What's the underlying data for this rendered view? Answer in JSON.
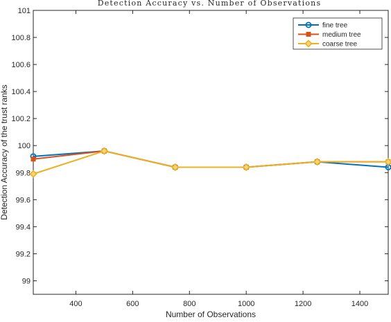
{
  "colors": {
    "fine": "#0072BD",
    "medium": "#D95319",
    "coarse": "#EDB120",
    "axis": "#262626",
    "background": "#ffffff"
  },
  "chart_data": {
    "type": "line",
    "title": "Detection Accuracy vs. Number of Observations",
    "xlabel": "Number of Observations",
    "ylabel": "Detection Accuracy of the trust ranks",
    "xlim": [
      250,
      1500
    ],
    "ylim": [
      98.9,
      101
    ],
    "xticks": [
      400,
      600,
      800,
      1000,
      1200,
      1400
    ],
    "yticks": [
      99,
      99.2,
      99.4,
      99.6,
      99.8,
      100,
      100.2,
      100.4,
      100.6,
      100.8,
      101
    ],
    "grid": false,
    "legend_position": "top-right",
    "series": [
      {
        "name": "fine tree",
        "color": "#0072BD",
        "marker": "circle",
        "x": [
          250,
          500,
          750,
          1000,
          1250,
          1500
        ],
        "y": [
          99.92,
          99.96,
          99.84,
          99.84,
          99.88,
          99.84
        ]
      },
      {
        "name": "medium tree",
        "color": "#D95319",
        "marker": "square",
        "x": [
          250,
          500,
          750,
          1000,
          1250,
          1500
        ],
        "y": [
          99.9,
          99.96,
          99.84,
          99.84,
          99.88,
          99.88
        ]
      },
      {
        "name": "coarse tree",
        "color": "#EDB120",
        "marker": "diamond",
        "x": [
          250,
          500,
          750,
          1000,
          1250,
          1500
        ],
        "y": [
          99.79,
          99.96,
          99.84,
          99.84,
          99.88,
          99.88
        ]
      }
    ]
  }
}
